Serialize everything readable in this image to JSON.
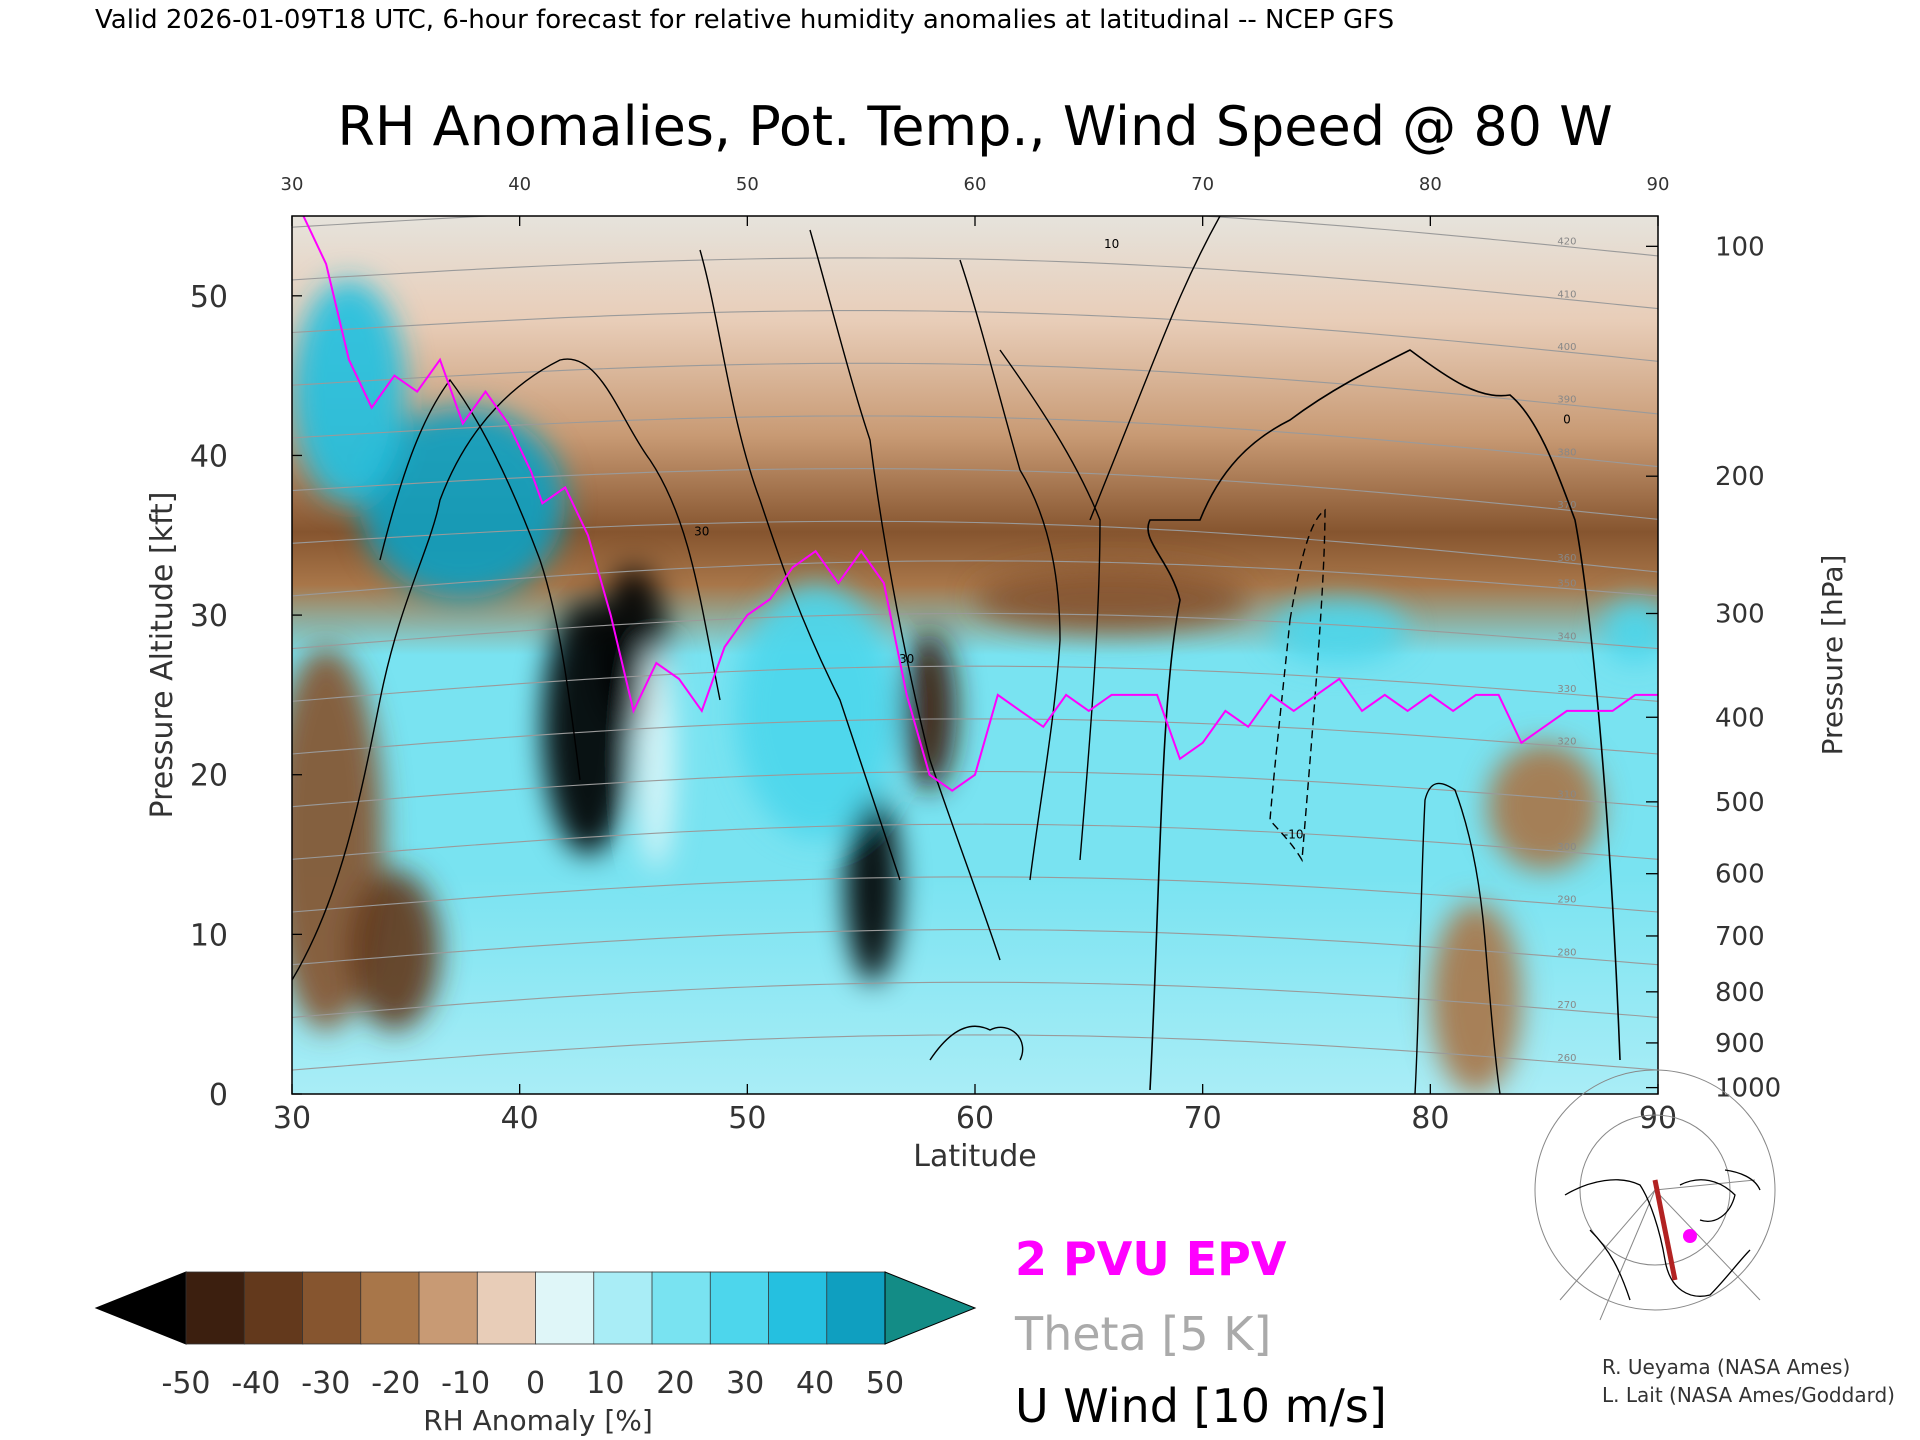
{
  "header": {
    "valid_line": "Valid 2026-01-09T18 UTC, 6-hour forecast for relative humidity anomalies at latitudinal -- NCEP GFS"
  },
  "chart_data": {
    "type": "heatmap",
    "title": "RH Anomalies, Pot. Temp., Wind Speed @ 80 W",
    "xlabel": "Latitude",
    "ylabel": "Pressure Altitude [kft]",
    "y2label": "Pressure [hPa]",
    "xlim": [
      30,
      90
    ],
    "ylim": [
      0,
      55
    ],
    "x_ticks": [
      "30",
      "40",
      "50",
      "60",
      "70",
      "80",
      "90"
    ],
    "y_ticks": [
      "0",
      "10",
      "20",
      "30",
      "40",
      "50"
    ],
    "pressure_ticks": [
      {
        "label": "100",
        "kft": 53.1
      },
      {
        "label": "200",
        "kft": 38.7
      },
      {
        "label": "300",
        "kft": 30.1
      },
      {
        "label": "400",
        "kft": 23.6
      },
      {
        "label": "500",
        "kft": 18.3
      },
      {
        "label": "600",
        "kft": 13.8
      },
      {
        "label": "700",
        "kft": 9.9
      },
      {
        "label": "800",
        "kft": 6.4
      },
      {
        "label": "900",
        "kft": 3.2
      },
      {
        "label": "1000",
        "kft": 0.4
      }
    ],
    "colorbar": {
      "label": "RH Anomaly [%]",
      "ticks": [
        "-50",
        "-40",
        "-30",
        "-20",
        "-10",
        "0",
        "10",
        "20",
        "30",
        "40",
        "50"
      ],
      "colors": [
        "#000000",
        "#3c1f0f",
        "#63391c",
        "#86552f",
        "#a87649",
        "#c89a74",
        "#e8cdb8",
        "#dff6f8",
        "#a9edf6",
        "#79e3f1",
        "#4dd6ec",
        "#25c0e0",
        "#0f9fc0",
        "#138c86"
      ]
    },
    "legend": {
      "epv": "2 PVU EPV",
      "theta": "Theta [5 K]",
      "uwind": "U Wind [10 m/s]",
      "epv_color": "#ff00ff",
      "theta_color": "#aaaaaa",
      "uwind_color": "#000000"
    },
    "rh_regions": [
      {
        "cx": 37.5,
        "cy": 37,
        "rx": 4.5,
        "ry": 6,
        "rh": 50
      },
      {
        "cx": 32.5,
        "cy": 44,
        "rx": 2.5,
        "ry": 7,
        "rh": 38
      },
      {
        "cx": 31.5,
        "cy": 16,
        "rx": 2.5,
        "ry": 12,
        "rh": -28
      },
      {
        "cx": 34.5,
        "cy": 9,
        "rx": 2,
        "ry": 5,
        "rh": -35
      },
      {
        "cx": 43,
        "cy": 23,
        "rx": 2,
        "ry": 8,
        "rh": -50
      },
      {
        "cx": 45,
        "cy": 28,
        "rx": 1.5,
        "ry": 5,
        "rh": -50
      },
      {
        "cx": 55.5,
        "cy": 13,
        "rx": 1.2,
        "ry": 6,
        "rh": -50
      },
      {
        "cx": 58,
        "cy": 24,
        "rx": 1.2,
        "ry": 5,
        "rh": -45
      },
      {
        "cx": 53,
        "cy": 24,
        "rx": 3.5,
        "ry": 8,
        "rh": 28
      },
      {
        "cx": 76,
        "cy": 29,
        "rx": 3,
        "ry": 2,
        "rh": 28
      },
      {
        "cx": 89,
        "cy": 29,
        "rx": 1.5,
        "ry": 2,
        "rh": 28
      },
      {
        "cx": 85,
        "cy": 18,
        "rx": 2.5,
        "ry": 4,
        "rh": -18
      },
      {
        "cx": 82,
        "cy": 6,
        "rx": 2,
        "ry": 6,
        "rh": -15
      },
      {
        "cx": 66,
        "cy": 31,
        "rx": 6,
        "ry": 2,
        "rh": -22
      },
      {
        "cx": 46,
        "cy": 21,
        "rx": 0.8,
        "ry": 7,
        "rh": 5
      }
    ],
    "theta_levels": [
      "260",
      "270",
      "280",
      "290",
      "300",
      "310",
      "320",
      "330",
      "340",
      "350",
      "360",
      "370",
      "380",
      "390",
      "400",
      "410",
      "420"
    ],
    "epv_2pvu": [
      [
        30.5,
        55
      ],
      [
        31.5,
        52
      ],
      [
        32.5,
        46
      ],
      [
        33.5,
        43
      ],
      [
        34.5,
        45
      ],
      [
        35.5,
        44
      ],
      [
        36.5,
        46
      ],
      [
        37.5,
        42
      ],
      [
        38.5,
        44
      ],
      [
        39.5,
        42
      ],
      [
        40.5,
        39
      ],
      [
        41,
        37
      ],
      [
        42,
        38
      ],
      [
        43,
        35
      ],
      [
        44,
        30
      ],
      [
        45,
        24
      ],
      [
        46,
        27
      ],
      [
        47,
        26
      ],
      [
        48,
        24
      ],
      [
        49,
        28
      ],
      [
        50,
        30
      ],
      [
        51,
        31
      ],
      [
        52,
        33
      ],
      [
        53,
        34
      ],
      [
        54,
        32
      ],
      [
        55,
        34
      ],
      [
        56,
        32
      ],
      [
        57,
        25
      ],
      [
        58,
        20
      ],
      [
        59,
        19
      ],
      [
        60,
        20
      ],
      [
        61,
        25
      ],
      [
        62,
        24
      ],
      [
        63,
        23
      ],
      [
        64,
        25
      ],
      [
        65,
        24
      ],
      [
        66,
        25
      ],
      [
        67,
        25
      ],
      [
        68,
        25
      ],
      [
        69,
        21
      ],
      [
        70,
        22
      ],
      [
        71,
        24
      ],
      [
        72,
        23
      ],
      [
        73,
        25
      ],
      [
        74,
        24
      ],
      [
        75,
        25
      ],
      [
        76,
        26
      ],
      [
        77,
        24
      ],
      [
        78,
        25
      ],
      [
        79,
        24
      ],
      [
        80,
        25
      ],
      [
        81,
        24
      ],
      [
        82,
        25
      ],
      [
        83,
        25
      ],
      [
        84,
        22
      ],
      [
        85,
        23
      ],
      [
        86,
        24
      ],
      [
        87,
        24
      ],
      [
        88,
        24
      ],
      [
        89,
        25
      ],
      [
        90,
        25
      ]
    ],
    "uwind_levels": [
      "0",
      "10",
      "30",
      "-10"
    ],
    "credits": [
      "R. Ueyama (NASA Ames)",
      "L. Lait (NASA Ames/Goddard)"
    ]
  }
}
